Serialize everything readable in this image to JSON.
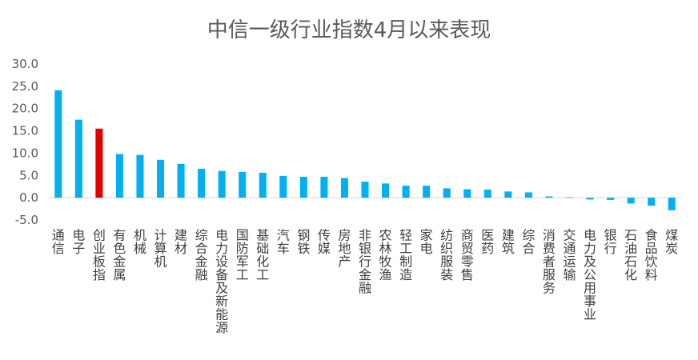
{
  "chart_data": {
    "type": "bar",
    "title": "中信一级行业指数4月以来表现",
    "xlabel": "",
    "ylabel": "",
    "ylim": [
      -5,
      30
    ],
    "yticks": [
      30,
      25,
      20,
      15,
      10,
      5,
      0,
      -5
    ],
    "ytick_labels": [
      "30.0",
      "25.0",
      "20.0",
      "15.0",
      "10.0",
      "5.0",
      "0.0",
      "-5.0"
    ],
    "grid": false,
    "legend": "none",
    "colors": {
      "default": "#00B0F0",
      "highlight": "#E00000",
      "text": "#595959"
    },
    "highlight_category": "创业板指",
    "categories": [
      "通信",
      "电子",
      "创业板指",
      "有色金属",
      "机械",
      "计算机",
      "建材",
      "综合金融",
      "电力设备及新能源",
      "国防军工",
      "基础化工",
      "汽车",
      "钢铁",
      "传媒",
      "房地产",
      "非银行金融",
      "农林牧渔",
      "轻工制造",
      "家电",
      "纺织服装",
      "商贸零售",
      "医药",
      "建筑",
      "综合",
      "消费者服务",
      "交通运输",
      "电力及公用事业",
      "银行",
      "石油石化",
      "食品饮料",
      "煤炭"
    ],
    "values": [
      24.1,
      17.5,
      15.5,
      9.8,
      9.6,
      8.5,
      7.6,
      6.5,
      6.0,
      5.8,
      5.6,
      4.9,
      4.7,
      4.7,
      4.4,
      3.6,
      3.2,
      2.7,
      2.7,
      2.1,
      1.9,
      1.8,
      1.4,
      1.2,
      0.3,
      0.1,
      -0.4,
      -0.5,
      -1.3,
      -1.8,
      -2.8
    ]
  }
}
